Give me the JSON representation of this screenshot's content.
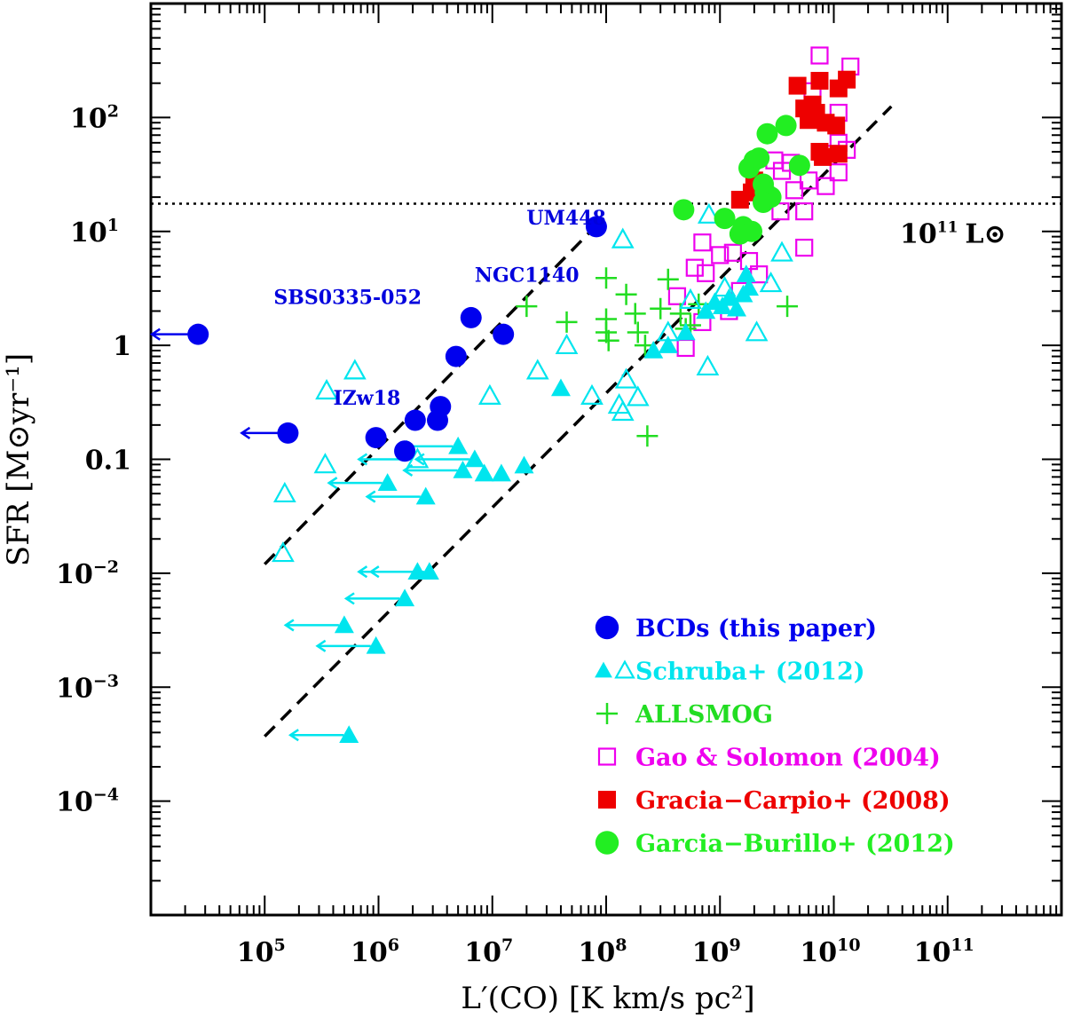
{
  "chart_data": {
    "type": "scatter",
    "xlabel": "L′(CO) [K km/s pc²]",
    "ylabel": "SFR [M⊙yr⁻¹]",
    "x_scale": "log",
    "y_scale": "log",
    "xlim": [
      10000.0,
      1000000000000.0
    ],
    "ylim": [
      1e-05,
      1000.0
    ],
    "x_tick_labels": [
      {
        "v": 100000.0,
        "base": "10",
        "exp": "5"
      },
      {
        "v": 1000000.0,
        "base": "10",
        "exp": "6"
      },
      {
        "v": 10000000.0,
        "base": "10",
        "exp": "7"
      },
      {
        "v": 100000000.0,
        "base": "10",
        "exp": "8"
      },
      {
        "v": 1000000000.0,
        "base": "10",
        "exp": "9"
      },
      {
        "v": 10000000000.0,
        "base": "10",
        "exp": "10"
      },
      {
        "v": 100000000000.0,
        "base": "10",
        "exp": "11"
      }
    ],
    "y_tick_labels": [
      {
        "v": 0.0001,
        "base": "10",
        "exp": "−4"
      },
      {
        "v": 0.001,
        "base": "10",
        "exp": "−3"
      },
      {
        "v": 0.01,
        "base": "10",
        "exp": "−2"
      },
      {
        "v": 0.1,
        "base": "0.1",
        "exp": ""
      },
      {
        "v": 1,
        "base": "1",
        "exp": ""
      },
      {
        "v": 10,
        "base": "10",
        "exp": "1"
      },
      {
        "v": 100,
        "base": "10",
        "exp": "2"
      }
    ],
    "reference_line": {
      "y": 17.5,
      "label_base": "10",
      "label_exp": "11",
      "label_unit": "L⊙"
    },
    "fit_lines": [
      {
        "x": [
          100000.0,
          80000000.0
        ],
        "y": [
          0.012,
          11
        ]
      },
      {
        "x": [
          100000.0,
          32000000000.0
        ],
        "y": [
          0.00037,
          125
        ]
      }
    ],
    "annotations": [
      {
        "text": "UM448",
        "x": 20000000.0,
        "y": 11.5,
        "color": "#0000dd"
      },
      {
        "text": "NGC1140",
        "x": 7000000.0,
        "y": 3.6,
        "color": "#0000dd"
      },
      {
        "text": "SBS0335-052",
        "x": 120000.0,
        "y": 2.3,
        "color": "#0000dd"
      },
      {
        "text": "IZw18",
        "x": 400000.0,
        "y": 0.3,
        "color": "#0000dd"
      }
    ],
    "series": [
      {
        "name": "BCDs (this paper)",
        "color": "#0000ee",
        "marker": "filled-circle",
        "points": [
          [
            26000.0,
            1.25
          ],
          [
            160000.0,
            0.17
          ],
          [
            950000.0,
            0.155
          ],
          [
            1700000.0,
            0.118
          ],
          [
            2100000.0,
            0.22
          ],
          [
            3300000.0,
            0.22
          ],
          [
            3500000.0,
            0.29
          ],
          [
            4800000.0,
            0.8
          ],
          [
            6500000.0,
            1.75
          ],
          [
            12500000.0,
            1.25
          ],
          [
            82000000.0,
            11
          ]
        ],
        "upper_x_limits": [
          [
            26000.0,
            1.25
          ],
          [
            160000.0,
            0.17
          ]
        ]
      },
      {
        "name": "Schruba+ (2012)",
        "color": "#00e5ee",
        "marker": "triangle",
        "points_open": [
          [
            150000.0,
            0.05
          ],
          [
            145000.0,
            0.015
          ],
          [
            350000.0,
            0.4
          ],
          [
            620000.0,
            0.6
          ],
          [
            340000.0,
            0.09
          ],
          [
            2200000.0,
            0.1
          ],
          [
            9500000.0,
            0.36
          ],
          [
            25000000.0,
            0.6
          ],
          [
            45000000.0,
            1.0
          ],
          [
            75000000.0,
            0.36
          ],
          [
            130000000.0,
            0.3
          ],
          [
            150000000.0,
            0.5
          ],
          [
            190000000.0,
            0.35
          ],
          [
            350000000.0,
            1.3
          ],
          [
            550000000.0,
            2.5
          ],
          [
            780000000.0,
            0.65
          ],
          [
            800000000.0,
            14
          ],
          [
            140000000.0,
            8.5
          ],
          [
            2100000000.0,
            1.3
          ],
          [
            2800000000.0,
            3.5
          ],
          [
            3500000000.0,
            6.5
          ],
          [
            140000000.0,
            0.26
          ],
          [
            1100000000.0,
            3.2
          ],
          [
            1300000000.0,
            2.3
          ]
        ],
        "points_filled": [
          [
            550000.0,
            0.00038
          ],
          [
            950000.0,
            0.0023
          ],
          [
            500000.0,
            0.0035
          ],
          [
            1700000.0,
            0.006
          ],
          [
            2800000.0,
            0.0103
          ],
          [
            2200000.0,
            0.0103
          ],
          [
            1200000.0,
            0.062
          ],
          [
            2600000.0,
            0.047
          ],
          [
            5000000.0,
            0.13
          ],
          [
            7000000.0,
            0.1
          ],
          [
            5500000.0,
            0.08
          ],
          [
            8500000.0,
            0.075
          ],
          [
            12000000.0,
            0.075
          ],
          [
            19000000.0,
            0.088
          ],
          [
            40000000.0,
            0.42
          ],
          [
            260000000.0,
            0.9
          ],
          [
            350000000.0,
            1.0
          ],
          [
            500000000.0,
            1.3
          ],
          [
            750000000.0,
            2.0
          ],
          [
            900000000.0,
            2.4
          ],
          [
            1050000000.0,
            2.2
          ],
          [
            1200000000.0,
            2.6
          ],
          [
            1400000000.0,
            2.1
          ],
          [
            1600000000.0,
            2.8
          ],
          [
            1800000000.0,
            3.2
          ],
          [
            1700000000.0,
            4.2
          ]
        ],
        "upper_x_limits": [
          [
            550000.0,
            0.00038
          ],
          [
            950000.0,
            0.0023
          ],
          [
            500000.0,
            0.0035
          ],
          [
            1700000.0,
            0.006
          ],
          [
            2800000.0,
            0.0103
          ],
          [
            2200000.0,
            0.0103
          ],
          [
            1200000.0,
            0.062
          ],
          [
            2600000.0,
            0.047
          ],
          [
            5000000.0,
            0.13
          ],
          [
            7000000.0,
            0.1
          ],
          [
            5500000.0,
            0.08
          ],
          [
            2200000.0,
            0.1
          ]
        ]
      },
      {
        "name": "ALLSMOG",
        "color": "#22dd22",
        "marker": "plus",
        "points": [
          [
            20000000.0,
            2.2
          ],
          [
            45000000.0,
            1.6
          ],
          [
            100000000.0,
            3.9
          ],
          [
            100000000.0,
            1.7
          ],
          [
            105000000.0,
            1.1
          ],
          [
            150000000.0,
            2.8
          ],
          [
            180000000.0,
            1.9
          ],
          [
            190000000.0,
            1.3
          ],
          [
            220000000.0,
            1.0
          ],
          [
            230000000.0,
            0.16
          ],
          [
            300000000.0,
            2.1
          ],
          [
            350000000.0,
            3.8
          ],
          [
            450000000.0,
            1.9
          ],
          [
            500000000.0,
            1.4
          ],
          [
            550000000.0,
            1.5
          ],
          [
            3900000000.0,
            2.2
          ],
          [
            100000000.0,
            1.3
          ],
          [
            650000000.0,
            2.3
          ]
        ]
      },
      {
        "name": "Gao & Solomon (2004)",
        "color": "#ee00ee",
        "marker": "open-square",
        "points": [
          [
            7500000000.0,
            350
          ],
          [
            14000000000.0,
            280
          ],
          [
            6500000000.0,
            170
          ],
          [
            11000000000.0,
            110
          ],
          [
            11000000000.0,
            60
          ],
          [
            9000000000.0,
            48
          ],
          [
            13000000000.0,
            52
          ],
          [
            6000000000.0,
            28
          ],
          [
            8500000000.0,
            25
          ],
          [
            11000000000.0,
            33
          ],
          [
            5500000000.0,
            15
          ],
          [
            5500000000.0,
            7.2
          ],
          [
            3000000000.0,
            42
          ],
          [
            4200000000.0,
            40
          ],
          [
            3400000000.0,
            15
          ],
          [
            1300000000.0,
            6.5
          ],
          [
            1800000000.0,
            5.5
          ],
          [
            2200000000.0,
            4.2
          ],
          [
            1500000000.0,
            3.0
          ],
          [
            1200000000.0,
            2.0
          ],
          [
            600000000.0,
            4.8
          ],
          [
            420000000.0,
            2.7
          ],
          [
            750000000.0,
            4.3
          ],
          [
            700000000.0,
            1.6
          ],
          [
            500000000.0,
            0.95
          ],
          [
            700000000.0,
            8.0
          ],
          [
            1000000000.0,
            6.2
          ],
          [
            4500000000.0,
            23
          ],
          [
            3500000000.0,
            34
          ]
        ]
      },
      {
        "name": "Gracia−Carpio+ (2008)",
        "color": "#ee0000",
        "marker": "filled-square",
        "points": [
          [
            4800000000.0,
            190
          ],
          [
            7500000000.0,
            210
          ],
          [
            13000000000.0,
            215
          ],
          [
            11000000000.0,
            180
          ],
          [
            6500000000.0,
            130
          ],
          [
            5500000000.0,
            120
          ],
          [
            7000000000.0,
            110
          ],
          [
            6000000000.0,
            95
          ],
          [
            8500000000.0,
            90
          ],
          [
            10500000000.0,
            85
          ],
          [
            7500000000.0,
            50
          ],
          [
            8000000000.0,
            45
          ],
          [
            11000000000.0,
            48
          ],
          [
            2000000000.0,
            28
          ],
          [
            1500000000.0,
            19
          ],
          [
            1900000000.0,
            22
          ]
        ]
      },
      {
        "name": "Garcia−Burillo+ (2012)",
        "color": "#22ee22",
        "marker": "filled-circle",
        "points": [
          [
            3800000000.0,
            85
          ],
          [
            2600000000.0,
            72
          ],
          [
            1800000000.0,
            36
          ],
          [
            2000000000.0,
            42
          ],
          [
            2200000000.0,
            44
          ],
          [
            5000000000.0,
            38
          ],
          [
            2400000000.0,
            26
          ],
          [
            2500000000.0,
            22
          ],
          [
            2800000000.0,
            20
          ],
          [
            2400000000.0,
            18
          ],
          [
            1900000000.0,
            10
          ],
          [
            1600000000.0,
            11
          ],
          [
            1100000000.0,
            13
          ],
          [
            1500000000.0,
            9.5
          ],
          [
            480000000.0,
            15.5
          ]
        ]
      }
    ],
    "legend": {
      "placement": "lower-right",
      "entries": [
        {
          "label": "BCDs (this paper)",
          "color": "#0000ee",
          "marker": "filled-circle"
        },
        {
          "label": "Schruba+ (2012)",
          "color": "#00e5ee",
          "marker": "triangle-pair"
        },
        {
          "label": "ALLSMOG",
          "color": "#22dd22",
          "marker": "plus"
        },
        {
          "label": "Gao & Solomon (2004)",
          "color": "#ee00ee",
          "marker": "open-square"
        },
        {
          "label": "Gracia−Carpio+ (2008)",
          "color": "#ee0000",
          "marker": "filled-square"
        },
        {
          "label": "Garcia−Burillo+ (2012)",
          "color": "#22ee22",
          "marker": "filled-circle"
        }
      ]
    }
  }
}
